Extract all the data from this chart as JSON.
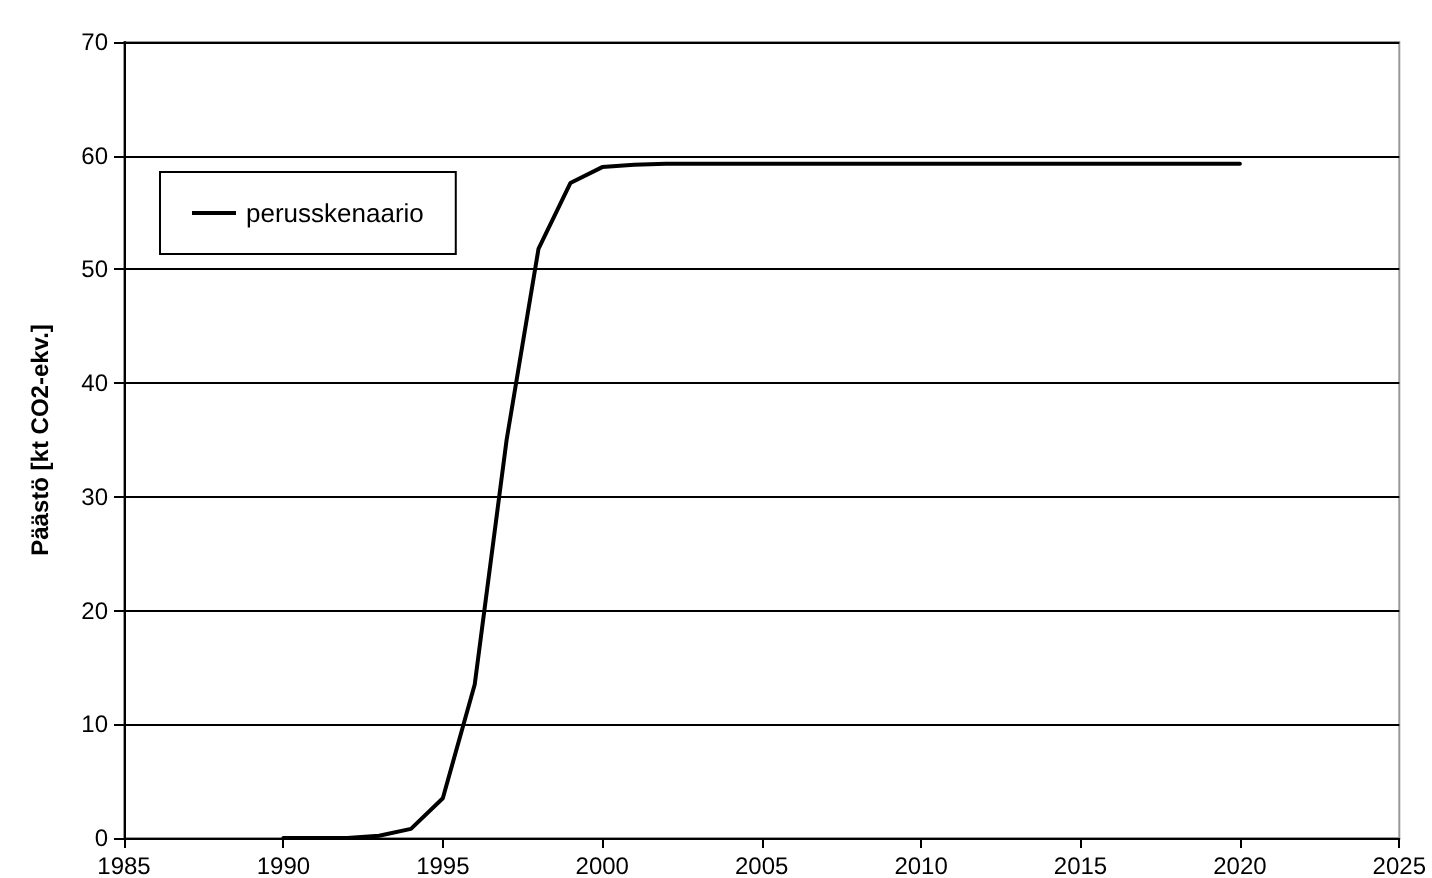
{
  "chart_data": {
    "type": "line",
    "ylabel": "Päästö [kt CO2-ekv.]",
    "x": [
      1990,
      1991,
      1992,
      1993,
      1994,
      1995,
      1996,
      1997,
      1998,
      1999,
      2000,
      2001,
      2002,
      2003,
      2004,
      2005,
      2006,
      2007,
      2008,
      2009,
      2010,
      2011,
      2012,
      2013,
      2014,
      2015,
      2016,
      2017,
      2018,
      2019,
      2020
    ],
    "series": [
      {
        "name": "perusskenaario",
        "color": "#000000",
        "values": [
          0,
          0,
          0,
          0.2,
          0.8,
          3.5,
          13.5,
          35,
          51.8,
          57.6,
          59,
          59.2,
          59.3,
          59.3,
          59.3,
          59.3,
          59.3,
          59.3,
          59.3,
          59.3,
          59.3,
          59.3,
          59.3,
          59.3,
          59.3,
          59.3,
          59.3,
          59.3,
          59.3,
          59.3,
          59.3
        ]
      }
    ],
    "xlim": [
      1985,
      2025
    ],
    "xticks": [
      1985,
      1990,
      1995,
      2000,
      2005,
      2010,
      2015,
      2020,
      2025
    ],
    "ylim": [
      0,
      70
    ],
    "yticks": [
      0,
      10,
      20,
      30,
      40,
      50,
      60,
      70
    ],
    "grid": "y",
    "legend": "top left",
    "marker": "none",
    "line_style": "solid"
  }
}
